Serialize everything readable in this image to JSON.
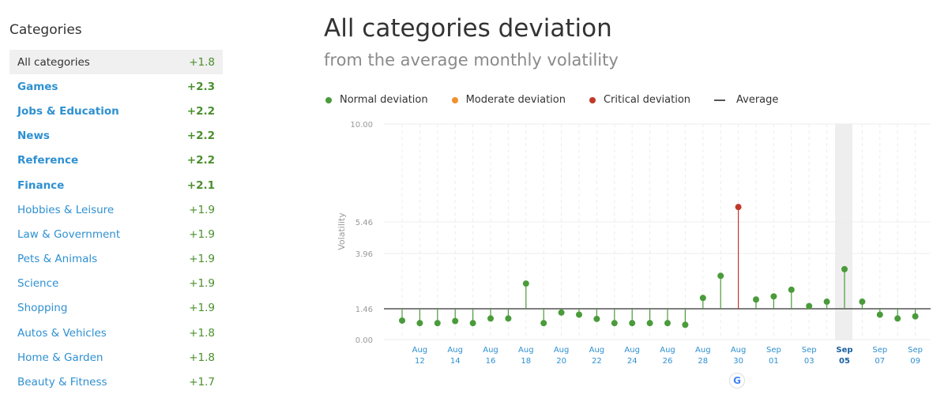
{
  "sidebar": {
    "title": "Categories",
    "items": [
      {
        "label": "All categories",
        "value": "+1.8"
      },
      {
        "label": "Games",
        "value": "+2.3"
      },
      {
        "label": "Jobs & Education",
        "value": "+2.2"
      },
      {
        "label": "News",
        "value": "+2.2"
      },
      {
        "label": "Reference",
        "value": "+2.2"
      },
      {
        "label": "Finance",
        "value": "+2.1"
      },
      {
        "label": "Hobbies & Leisure",
        "value": "+1.9"
      },
      {
        "label": "Law & Government",
        "value": "+1.9"
      },
      {
        "label": "Pets & Animals",
        "value": "+1.9"
      },
      {
        "label": "Science",
        "value": "+1.9"
      },
      {
        "label": "Shopping",
        "value": "+1.9"
      },
      {
        "label": "Autos & Vehicles",
        "value": "+1.8"
      },
      {
        "label": "Home & Garden",
        "value": "+1.8"
      },
      {
        "label": "Beauty & Fitness",
        "value": "+1.7"
      }
    ]
  },
  "header": {
    "title": "All categories deviation",
    "subtitle": "from the average monthly volatility"
  },
  "legend": {
    "normal": "Normal deviation",
    "moderate": "Moderate deviation",
    "critical": "Critical deviation",
    "average": "Average"
  },
  "colors": {
    "normal": "#4a9b3a",
    "moderate": "#f0912d",
    "critical": "#c0392b",
    "average": "#555555",
    "link": "#2e90d1",
    "positive": "#4a8f2c"
  },
  "google_marker": {
    "icon": "google-icon",
    "text": "G",
    "date": "Aug 30"
  },
  "chart_data": {
    "type": "lollipop",
    "ylabel": "Volatility",
    "y_ticks": [
      0.0,
      1.46,
      3.96,
      5.46,
      10.0
    ],
    "y_tick_labels": [
      "0.00",
      "1.46",
      "3.96",
      "5.46",
      "10.00"
    ],
    "average": 1.46,
    "highlighted_date": "Sep 05",
    "x_tick_labels": [
      [
        "Aug",
        "12"
      ],
      [
        "Aug",
        "14"
      ],
      [
        "Aug",
        "16"
      ],
      [
        "Aug",
        "18"
      ],
      [
        "Aug",
        "20"
      ],
      [
        "Aug",
        "22"
      ],
      [
        "Aug",
        "24"
      ],
      [
        "Aug",
        "26"
      ],
      [
        "Aug",
        "28"
      ],
      [
        "Aug",
        "30"
      ],
      [
        "Sep",
        "01"
      ],
      [
        "Sep",
        "03"
      ],
      [
        "Sep",
        "05"
      ],
      [
        "Sep",
        "07"
      ],
      [
        "Sep",
        "09"
      ]
    ],
    "x": [
      "Aug 11",
      "Aug 12",
      "Aug 13",
      "Aug 14",
      "Aug 15",
      "Aug 16",
      "Aug 17",
      "Aug 18",
      "Aug 19",
      "Aug 20",
      "Aug 21",
      "Aug 22",
      "Aug 23",
      "Aug 24",
      "Aug 25",
      "Aug 26",
      "Aug 27",
      "Aug 28",
      "Aug 29",
      "Aug 30",
      "Aug 31",
      "Sep 01",
      "Sep 02",
      "Sep 03",
      "Sep 04",
      "Sep 05",
      "Sep 06",
      "Sep 07",
      "Sep 08",
      "Sep 09"
    ],
    "values": [
      0.9,
      0.78,
      0.78,
      0.88,
      0.78,
      1.0,
      1.0,
      2.6,
      0.78,
      1.28,
      1.18,
      0.98,
      0.78,
      0.78,
      0.78,
      0.78,
      0.7,
      1.95,
      2.95,
      6.15,
      1.88,
      2.02,
      2.32,
      1.58,
      1.78,
      3.25,
      1.78,
      1.18,
      1.0,
      1.1
    ],
    "severity": [
      "normal",
      "normal",
      "normal",
      "normal",
      "normal",
      "normal",
      "normal",
      "normal",
      "normal",
      "normal",
      "normal",
      "normal",
      "normal",
      "normal",
      "normal",
      "normal",
      "normal",
      "normal",
      "normal",
      "critical",
      "normal",
      "normal",
      "normal",
      "normal",
      "normal",
      "normal",
      "normal",
      "normal",
      "normal",
      "normal"
    ]
  }
}
